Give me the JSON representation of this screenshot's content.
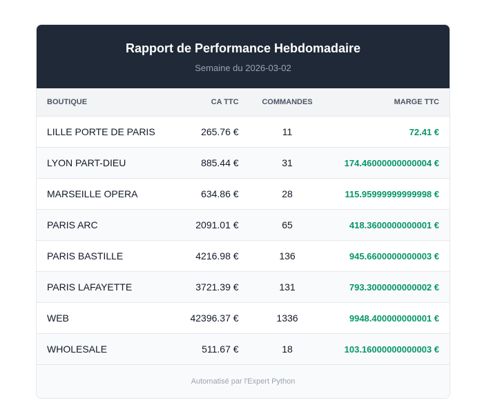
{
  "header": {
    "title": "Rapport de Performance Hebdomadaire",
    "subtitle": "Semaine du 2026-03-02"
  },
  "table": {
    "columns": [
      "BOUTIQUE",
      "CA TTC",
      "COMMANDES",
      "MARGE TTC"
    ],
    "rows": [
      [
        "LILLE PORTE DE PARIS",
        "265.76 €",
        "11",
        "72.41 €"
      ],
      [
        "LYON PART-DIEU",
        "885.44 €",
        "31",
        "174.46000000000004 €"
      ],
      [
        "MARSEILLE OPERA",
        "634.86 €",
        "28",
        "115.95999999999998 €"
      ],
      [
        "PARIS ARC",
        "2091.01 €",
        "65",
        "418.3600000000001 €"
      ],
      [
        "PARIS BASTILLE",
        "4216.98 €",
        "136",
        "945.6600000000003 €"
      ],
      [
        "PARIS LAFAYETTE",
        "3721.39 €",
        "131",
        "793.3000000000002 €"
      ],
      [
        "WEB",
        "42396.37 €",
        "1336",
        "9948.400000000001 €"
      ],
      [
        "WHOLESALE",
        "511.67 €",
        "18",
        "103.16000000000003 €"
      ]
    ]
  },
  "footer": "Automatisé par l'Expert Python"
}
